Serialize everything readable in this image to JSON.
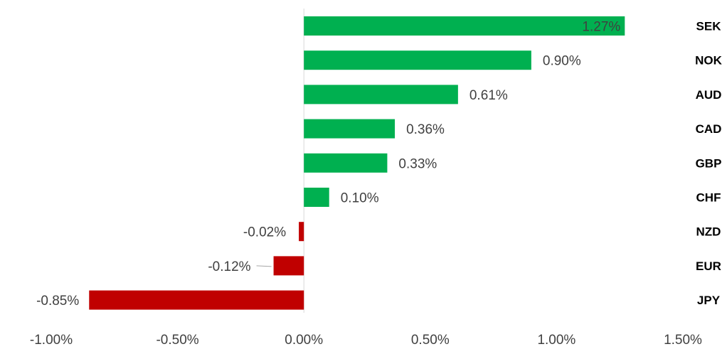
{
  "chart_data": {
    "type": "bar",
    "orientation": "horizontal",
    "categories": [
      "SEK",
      "NOK",
      "AUD",
      "CAD",
      "GBP",
      "CHF",
      "NZD",
      "EUR",
      "JPY"
    ],
    "values": [
      1.27,
      0.9,
      0.61,
      0.36,
      0.33,
      0.1,
      -0.02,
      -0.12,
      -0.85
    ],
    "data_labels": [
      "1.27%",
      "0.90%",
      "0.61%",
      "0.36%",
      "0.33%",
      "0.10%",
      "-0.02%",
      "-0.12%",
      "-0.85%"
    ],
    "xlim": [
      -1.0,
      1.5
    ],
    "x_ticks": [
      -1.0,
      -0.5,
      0.0,
      0.5,
      1.0,
      1.5
    ],
    "x_tick_labels": [
      "-1.00%",
      "-0.50%",
      "0.00%",
      "0.50%",
      "1.00%",
      "1.50%"
    ],
    "positive_color": "#00B050",
    "negative_color": "#C00000",
    "grid": false,
    "legend": "none",
    "category_labels_position": "right"
  }
}
